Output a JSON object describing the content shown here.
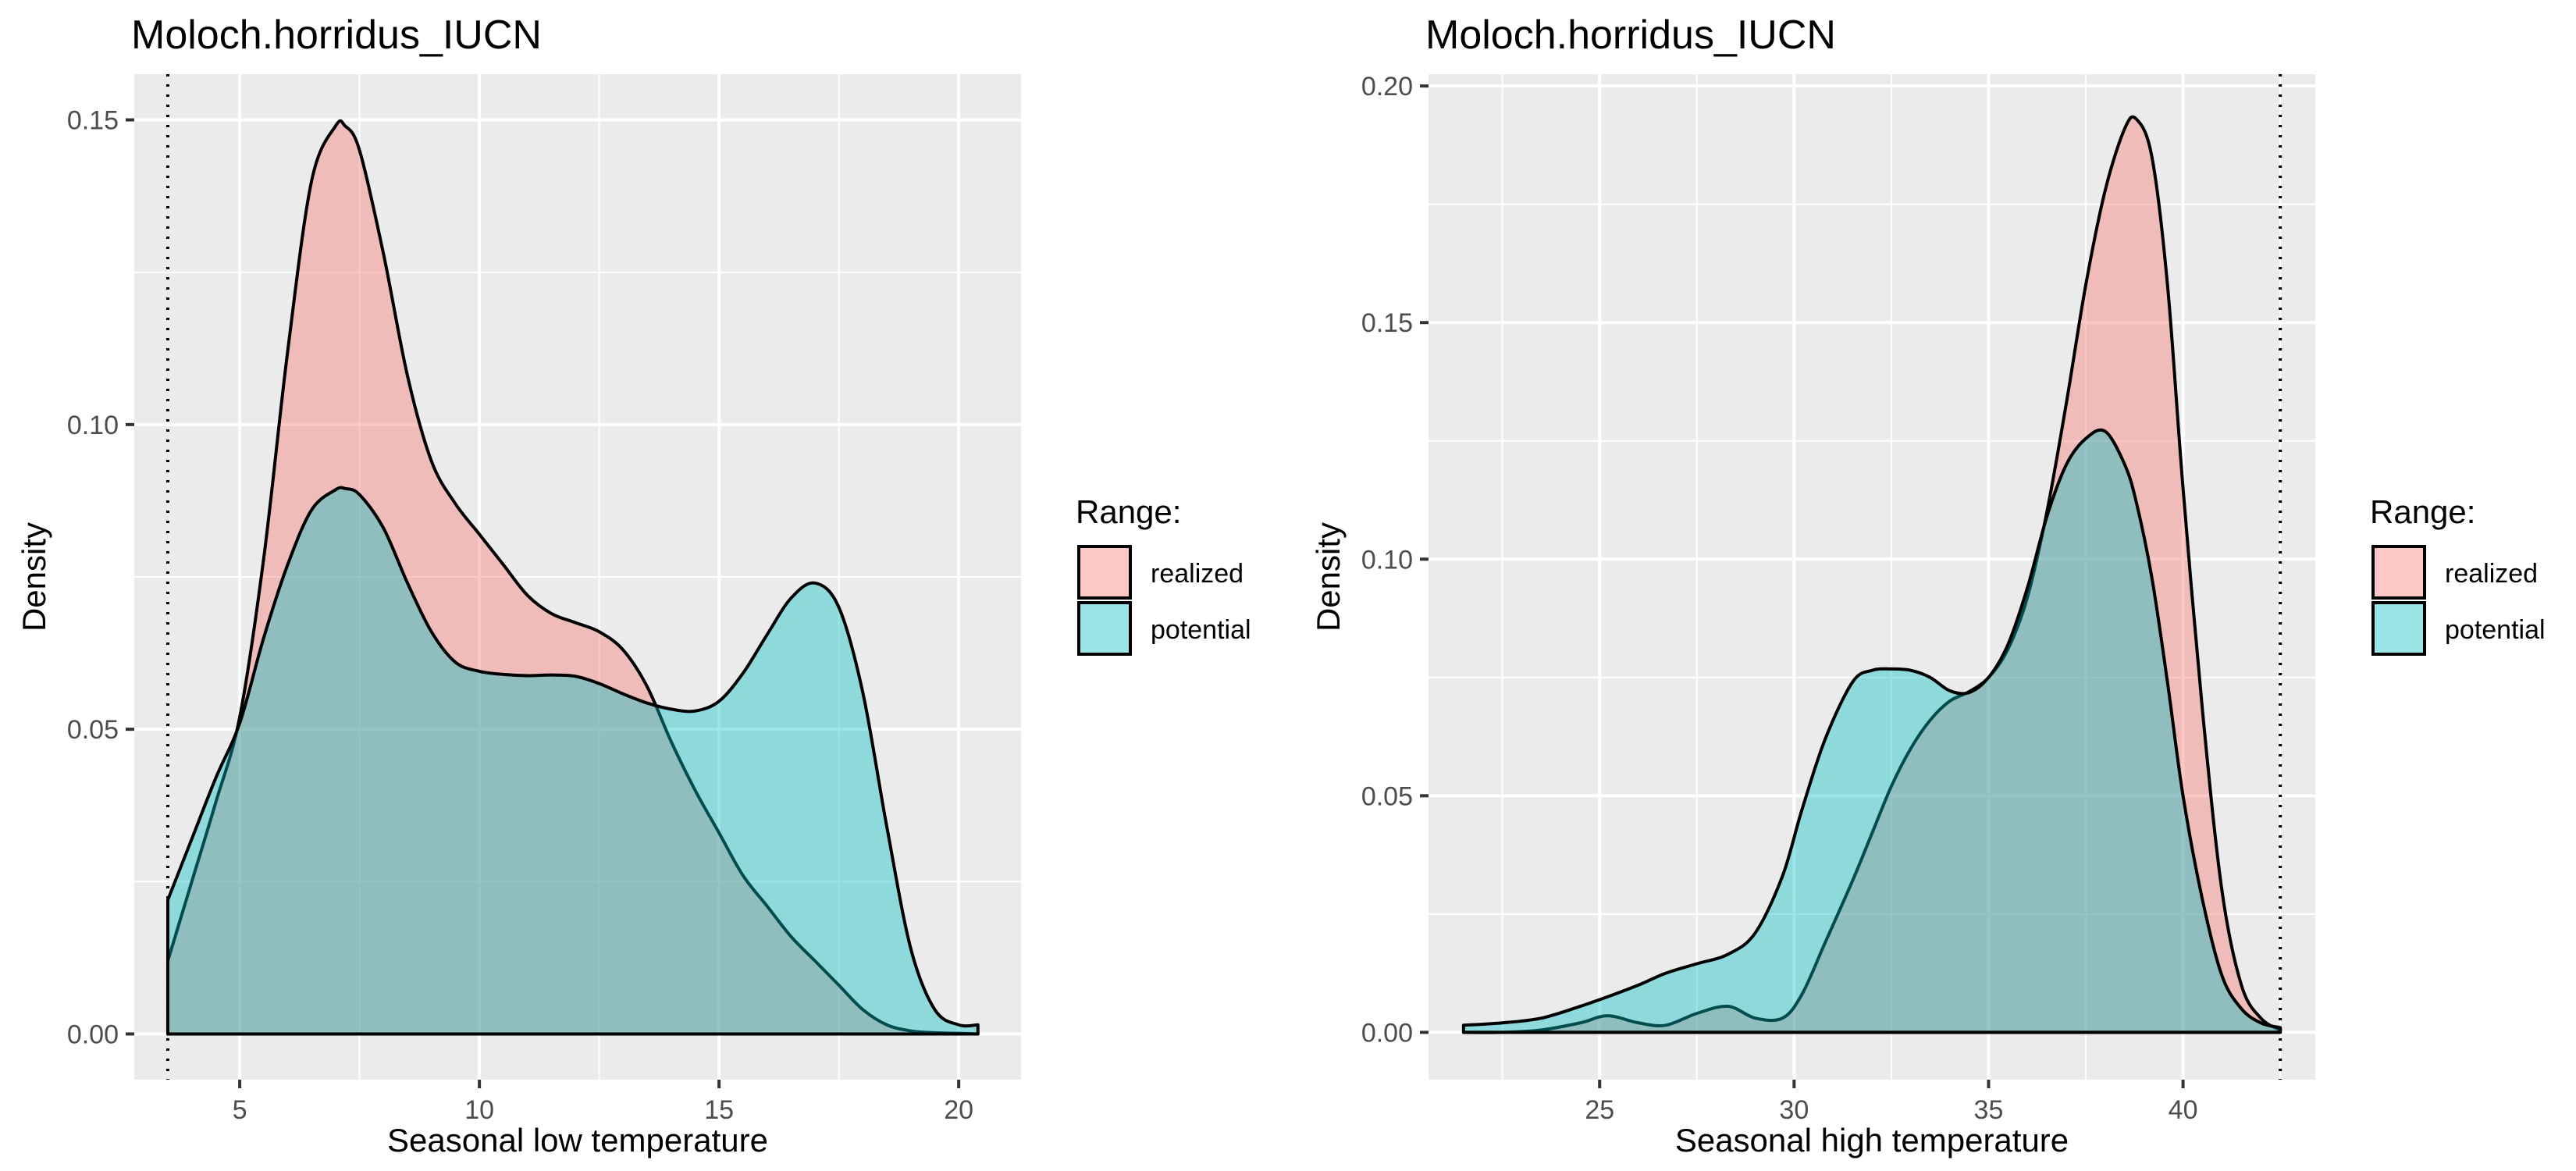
{
  "chart_data": [
    {
      "type": "area",
      "title": "Moloch.horridus_IUCN",
      "xlabel": "Seasonal low temperature",
      "ylabel": "Density",
      "xlim": [
        2.8,
        21.3
      ],
      "ylim": [
        -0.0075,
        0.1575
      ],
      "xticks": [
        5,
        10,
        15,
        20
      ],
      "xtick_labels": [
        "5",
        "10",
        "15",
        "20"
      ],
      "yticks": [
        0.0,
        0.05,
        0.1,
        0.15
      ],
      "ytick_labels": [
        "0.00",
        "0.05",
        "0.10",
        "0.15"
      ],
      "vline": 3.5,
      "grid": true,
      "legend": {
        "title": "Range:",
        "position": "right",
        "entries": [
          "realized",
          "potential"
        ]
      },
      "series": [
        {
          "name": "realized",
          "color": "#f8766d",
          "x": [
            3.5,
            4.0,
            4.5,
            5.0,
            5.5,
            6.0,
            6.5,
            7.0,
            7.2,
            7.5,
            8.0,
            8.5,
            9.0,
            9.5,
            10.0,
            10.5,
            11.0,
            11.5,
            12.0,
            12.5,
            13.0,
            13.5,
            14.0,
            14.5,
            15.0,
            15.5,
            16.0,
            16.5,
            17.0,
            17.5,
            18.0,
            18.5,
            19.0,
            19.5,
            20.0,
            20.4
          ],
          "y": [
            0.012,
            0.025,
            0.038,
            0.052,
            0.078,
            0.112,
            0.14,
            0.149,
            0.149,
            0.145,
            0.128,
            0.108,
            0.094,
            0.087,
            0.082,
            0.077,
            0.072,
            0.069,
            0.0675,
            0.066,
            0.063,
            0.057,
            0.048,
            0.04,
            0.033,
            0.026,
            0.021,
            0.016,
            0.012,
            0.008,
            0.004,
            0.0015,
            0.0005,
            0.0002,
            0.0001,
            0.0
          ]
        },
        {
          "name": "potential",
          "color": "#00bfc4",
          "x": [
            3.5,
            4.0,
            4.5,
            5.0,
            5.5,
            6.0,
            6.5,
            7.0,
            7.2,
            7.5,
            8.0,
            8.5,
            9.0,
            9.5,
            10.0,
            10.5,
            11.0,
            11.5,
            12.0,
            12.5,
            13.0,
            13.5,
            14.0,
            14.5,
            15.0,
            15.5,
            16.0,
            16.5,
            17.0,
            17.5,
            18.0,
            18.5,
            19.0,
            19.5,
            20.0,
            20.4
          ],
          "y": [
            0.022,
            0.032,
            0.042,
            0.051,
            0.065,
            0.077,
            0.086,
            0.0893,
            0.0895,
            0.0885,
            0.083,
            0.074,
            0.066,
            0.061,
            0.0595,
            0.059,
            0.0588,
            0.0589,
            0.0587,
            0.0575,
            0.0558,
            0.0543,
            0.0533,
            0.053,
            0.0546,
            0.0592,
            0.0655,
            0.0715,
            0.074,
            0.07,
            0.056,
            0.034,
            0.014,
            0.004,
            0.0015,
            0.0015
          ]
        }
      ]
    },
    {
      "type": "area",
      "title": "Moloch.horridus_IUCN",
      "xlabel": "Seasonal high temperature",
      "ylabel": "Density",
      "xlim": [
        20.6,
        43.4
      ],
      "ylim": [
        -0.01,
        0.2025
      ],
      "xticks": [
        25,
        30,
        35,
        40
      ],
      "xtick_labels": [
        "25",
        "30",
        "35",
        "40"
      ],
      "yticks": [
        0.0,
        0.05,
        0.1,
        0.15,
        0.2
      ],
      "ytick_labels": [
        "0.00",
        "0.05",
        "0.10",
        "0.15",
        "0.20"
      ],
      "vline": 42.5,
      "grid": true,
      "legend": {
        "title": "Range:",
        "position": "right",
        "entries": [
          "realized",
          "potential"
        ]
      },
      "series": [
        {
          "name": "realized",
          "color": "#f8766d",
          "x": [
            21.5,
            22.5,
            23.5,
            24.5,
            25.2,
            26.0,
            26.7,
            27.5,
            28.3,
            29.0,
            29.7,
            30.2,
            30.8,
            31.5,
            32.0,
            32.5,
            33.0,
            33.5,
            34.0,
            34.5,
            35.0,
            35.5,
            36.0,
            36.5,
            37.0,
            37.5,
            38.0,
            38.5,
            38.8,
            39.2,
            39.6,
            40.0,
            40.5,
            41.0,
            41.5,
            42.0,
            42.5
          ],
          "y": [
            0.0,
            0.0,
            0.0005,
            0.002,
            0.0035,
            0.002,
            0.0015,
            0.004,
            0.0055,
            0.003,
            0.003,
            0.008,
            0.019,
            0.032,
            0.042,
            0.052,
            0.06,
            0.066,
            0.07,
            0.072,
            0.075,
            0.081,
            0.092,
            0.11,
            0.133,
            0.158,
            0.178,
            0.191,
            0.193,
            0.185,
            0.158,
            0.115,
            0.068,
            0.03,
            0.01,
            0.003,
            0.0005
          ]
        },
        {
          "name": "potential",
          "color": "#00bfc4",
          "x": [
            21.5,
            22.5,
            23.5,
            24.5,
            25.2,
            26.0,
            26.7,
            27.5,
            28.3,
            29.0,
            29.7,
            30.2,
            30.8,
            31.5,
            32.0,
            32.5,
            33.0,
            33.5,
            34.0,
            34.5,
            35.0,
            35.5,
            36.0,
            36.5,
            37.0,
            37.5,
            38.0,
            38.5,
            38.8,
            39.2,
            39.6,
            40.0,
            40.5,
            41.0,
            41.5,
            42.0,
            42.5
          ],
          "y": [
            0.0015,
            0.002,
            0.003,
            0.0055,
            0.0075,
            0.01,
            0.0125,
            0.0145,
            0.0165,
            0.021,
            0.033,
            0.047,
            0.062,
            0.074,
            0.0765,
            0.0768,
            0.0765,
            0.075,
            0.0722,
            0.0718,
            0.075,
            0.082,
            0.094,
            0.109,
            0.12,
            0.1255,
            0.127,
            0.12,
            0.112,
            0.096,
            0.074,
            0.05,
            0.028,
            0.012,
            0.005,
            0.002,
            0.001
          ]
        }
      ]
    }
  ]
}
